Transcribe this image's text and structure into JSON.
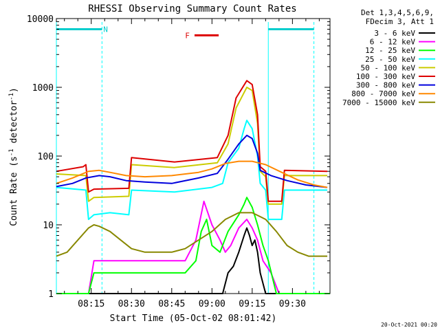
{
  "chart_data": {
    "type": "line",
    "title": "RHESSI Observing Summary Count Rates",
    "xlabel": "Start Time (05-Oct-02 08:01:42)",
    "ylabel_parts": [
      "Count Rate (s",
      "-1",
      " detector",
      "-1",
      ")"
    ],
    "y_scale": "log",
    "ylim": [
      1,
      10000
    ],
    "xlim_min": [
      2,
      104
    ],
    "y_ticks": [
      {
        "value": 1,
        "label": "1"
      },
      {
        "value": 10,
        "label": "10"
      },
      {
        "value": 100,
        "label": "100"
      },
      {
        "value": 1000,
        "label": "1000"
      },
      {
        "value": 10000,
        "label": "10000"
      }
    ],
    "x_ticks": [
      {
        "value": 15,
        "label": "08:15"
      },
      {
        "value": 30,
        "label": "08:30"
      },
      {
        "value": 45,
        "label": "08:45"
      },
      {
        "value": 60,
        "label": "09:00"
      },
      {
        "value": 75,
        "label": "09:15"
      },
      {
        "value": 90,
        "label": "09:30"
      }
    ],
    "legend_header": [
      "Det 1,3,4,5,6,9,",
      "FDecim 3, Att 1"
    ],
    "series": [
      {
        "name": "3 - 6 keV",
        "color": "#000000",
        "points": [
          [
            2,
            1
          ],
          [
            64,
            1
          ],
          [
            66,
            2
          ],
          [
            68,
            2.5
          ],
          [
            70,
            4
          ],
          [
            72,
            7
          ],
          [
            73,
            9
          ],
          [
            74,
            7
          ],
          [
            75,
            5
          ],
          [
            76,
            6
          ],
          [
            77,
            4
          ],
          [
            78,
            2
          ],
          [
            80,
            1
          ],
          [
            104,
            1
          ]
        ]
      },
      {
        "name": "6 - 12 keV",
        "color": "#ff00ff",
        "points": [
          [
            2,
            1
          ],
          [
            14,
            1
          ],
          [
            16,
            3
          ],
          [
            50,
            3
          ],
          [
            54,
            6
          ],
          [
            57,
            22
          ],
          [
            60,
            10
          ],
          [
            63,
            6
          ],
          [
            65,
            4
          ],
          [
            67,
            5
          ],
          [
            70,
            9
          ],
          [
            73,
            12
          ],
          [
            75,
            9
          ],
          [
            77,
            6
          ],
          [
            79,
            3
          ],
          [
            82,
            2
          ],
          [
            85,
            1
          ],
          [
            104,
            1
          ]
        ]
      },
      {
        "name": "12 - 25 keV",
        "color": "#00ff00",
        "points": [
          [
            2,
            1
          ],
          [
            14,
            1
          ],
          [
            16,
            2
          ],
          [
            40,
            2
          ],
          [
            50,
            2
          ],
          [
            54,
            3
          ],
          [
            56,
            8
          ],
          [
            58,
            12
          ],
          [
            60,
            5
          ],
          [
            63,
            4
          ],
          [
            66,
            8
          ],
          [
            70,
            14
          ],
          [
            72,
            20
          ],
          [
            73,
            25
          ],
          [
            75,
            18
          ],
          [
            77,
            10
          ],
          [
            79,
            5
          ],
          [
            81,
            3
          ],
          [
            84,
            1
          ],
          [
            104,
            1
          ]
        ]
      },
      {
        "name": "25 - 50 keV",
        "color": "#00ffff",
        "points": [
          [
            2,
            35
          ],
          [
            13,
            32
          ],
          [
            14,
            12
          ],
          [
            16,
            14
          ],
          [
            22,
            15
          ],
          [
            29,
            14
          ],
          [
            30,
            32
          ],
          [
            46,
            30
          ],
          [
            60,
            35
          ],
          [
            64,
            40
          ],
          [
            66,
            80
          ],
          [
            70,
            130
          ],
          [
            72,
            250
          ],
          [
            73,
            330
          ],
          [
            75,
            250
          ],
          [
            77,
            100
          ],
          [
            78,
            40
          ],
          [
            80,
            32
          ],
          [
            81,
            12
          ],
          [
            86,
            12
          ],
          [
            87,
            32
          ],
          [
            103,
            32
          ]
        ]
      },
      {
        "name": "50 - 100 keV",
        "color": "#cccc00",
        "points": [
          [
            2,
            55
          ],
          [
            13,
            52
          ],
          [
            14,
            22
          ],
          [
            16,
            25
          ],
          [
            29,
            26
          ],
          [
            30,
            75
          ],
          [
            46,
            68
          ],
          [
            62,
            80
          ],
          [
            66,
            150
          ],
          [
            69,
            500
          ],
          [
            73,
            1000
          ],
          [
            75,
            900
          ],
          [
            77,
            300
          ],
          [
            78,
            60
          ],
          [
            80,
            50
          ],
          [
            81,
            20
          ],
          [
            86,
            20
          ],
          [
            87,
            52
          ],
          [
            103,
            52
          ]
        ]
      },
      {
        "name": "100 - 300 keV",
        "color": "#dd0000",
        "points": [
          [
            2,
            60
          ],
          [
            12,
            70
          ],
          [
            13,
            75
          ],
          [
            14,
            30
          ],
          [
            16,
            33
          ],
          [
            29,
            34
          ],
          [
            30,
            95
          ],
          [
            46,
            82
          ],
          [
            62,
            95
          ],
          [
            66,
            200
          ],
          [
            69,
            700
          ],
          [
            73,
            1250
          ],
          [
            75,
            1100
          ],
          [
            77,
            400
          ],
          [
            78,
            70
          ],
          [
            80,
            60
          ],
          [
            81,
            22
          ],
          [
            86,
            22
          ],
          [
            87,
            62
          ],
          [
            103,
            60
          ]
        ]
      },
      {
        "name": "300 - 800 keV",
        "color": "#0000dd",
        "points": [
          [
            2,
            36
          ],
          [
            8,
            40
          ],
          [
            13,
            48
          ],
          [
            18,
            52
          ],
          [
            22,
            50
          ],
          [
            28,
            44
          ],
          [
            35,
            42
          ],
          [
            45,
            40
          ],
          [
            55,
            48
          ],
          [
            62,
            56
          ],
          [
            66,
            90
          ],
          [
            70,
            150
          ],
          [
            73,
            200
          ],
          [
            75,
            180
          ],
          [
            77,
            110
          ],
          [
            78,
            62
          ],
          [
            82,
            52
          ],
          [
            88,
            44
          ],
          [
            95,
            38
          ],
          [
            103,
            35
          ]
        ]
      },
      {
        "name": "800 - 7000 keV",
        "color": "#ff8800",
        "points": [
          [
            2,
            40
          ],
          [
            8,
            48
          ],
          [
            14,
            60
          ],
          [
            18,
            62
          ],
          [
            22,
            58
          ],
          [
            28,
            52
          ],
          [
            35,
            50
          ],
          [
            45,
            52
          ],
          [
            55,
            58
          ],
          [
            60,
            65
          ],
          [
            65,
            78
          ],
          [
            70,
            84
          ],
          [
            75,
            84
          ],
          [
            80,
            75
          ],
          [
            86,
            58
          ],
          [
            92,
            45
          ],
          [
            98,
            38
          ],
          [
            103,
            35
          ]
        ]
      },
      {
        "name": "7000 - 15000 keV",
        "color": "#888800",
        "points": [
          [
            2,
            3.5
          ],
          [
            6,
            4
          ],
          [
            10,
            6
          ],
          [
            14,
            9
          ],
          [
            16,
            10
          ],
          [
            18,
            9.5
          ],
          [
            22,
            8
          ],
          [
            26,
            6
          ],
          [
            30,
            4.5
          ],
          [
            35,
            4
          ],
          [
            45,
            4
          ],
          [
            50,
            4.5
          ],
          [
            55,
            6
          ],
          [
            60,
            8
          ],
          [
            65,
            12
          ],
          [
            70,
            15
          ],
          [
            75,
            15
          ],
          [
            80,
            12
          ],
          [
            84,
            8
          ],
          [
            88,
            5
          ],
          [
            92,
            4
          ],
          [
            96,
            3.5
          ],
          [
            103,
            3.5
          ]
        ]
      }
    ],
    "annotations": [
      {
        "label": "N",
        "color": "#00cccc",
        "bar_from": 2,
        "bar_to": 19,
        "level": 7000,
        "label_at": 19.5
      },
      {
        "label": "F",
        "color": "#dd0000",
        "bar_from": 53.5,
        "bar_to": 62.5,
        "level": 5700,
        "label_at": 50
      }
    ],
    "night_bar_right": {
      "color": "#00cccc",
      "bar_from": 81,
      "bar_to": 98,
      "level": 7000
    },
    "vlines": [
      {
        "x": 2,
        "style": "solid",
        "color": "#00ffff"
      },
      {
        "x": 19,
        "style": "dashed",
        "color": "#00ffff"
      },
      {
        "x": 81,
        "style": "solid",
        "color": "#00ffff"
      },
      {
        "x": 98,
        "style": "dashed",
        "color": "#00ffff"
      }
    ],
    "footer_date": "20-Oct-2021 00:20"
  }
}
